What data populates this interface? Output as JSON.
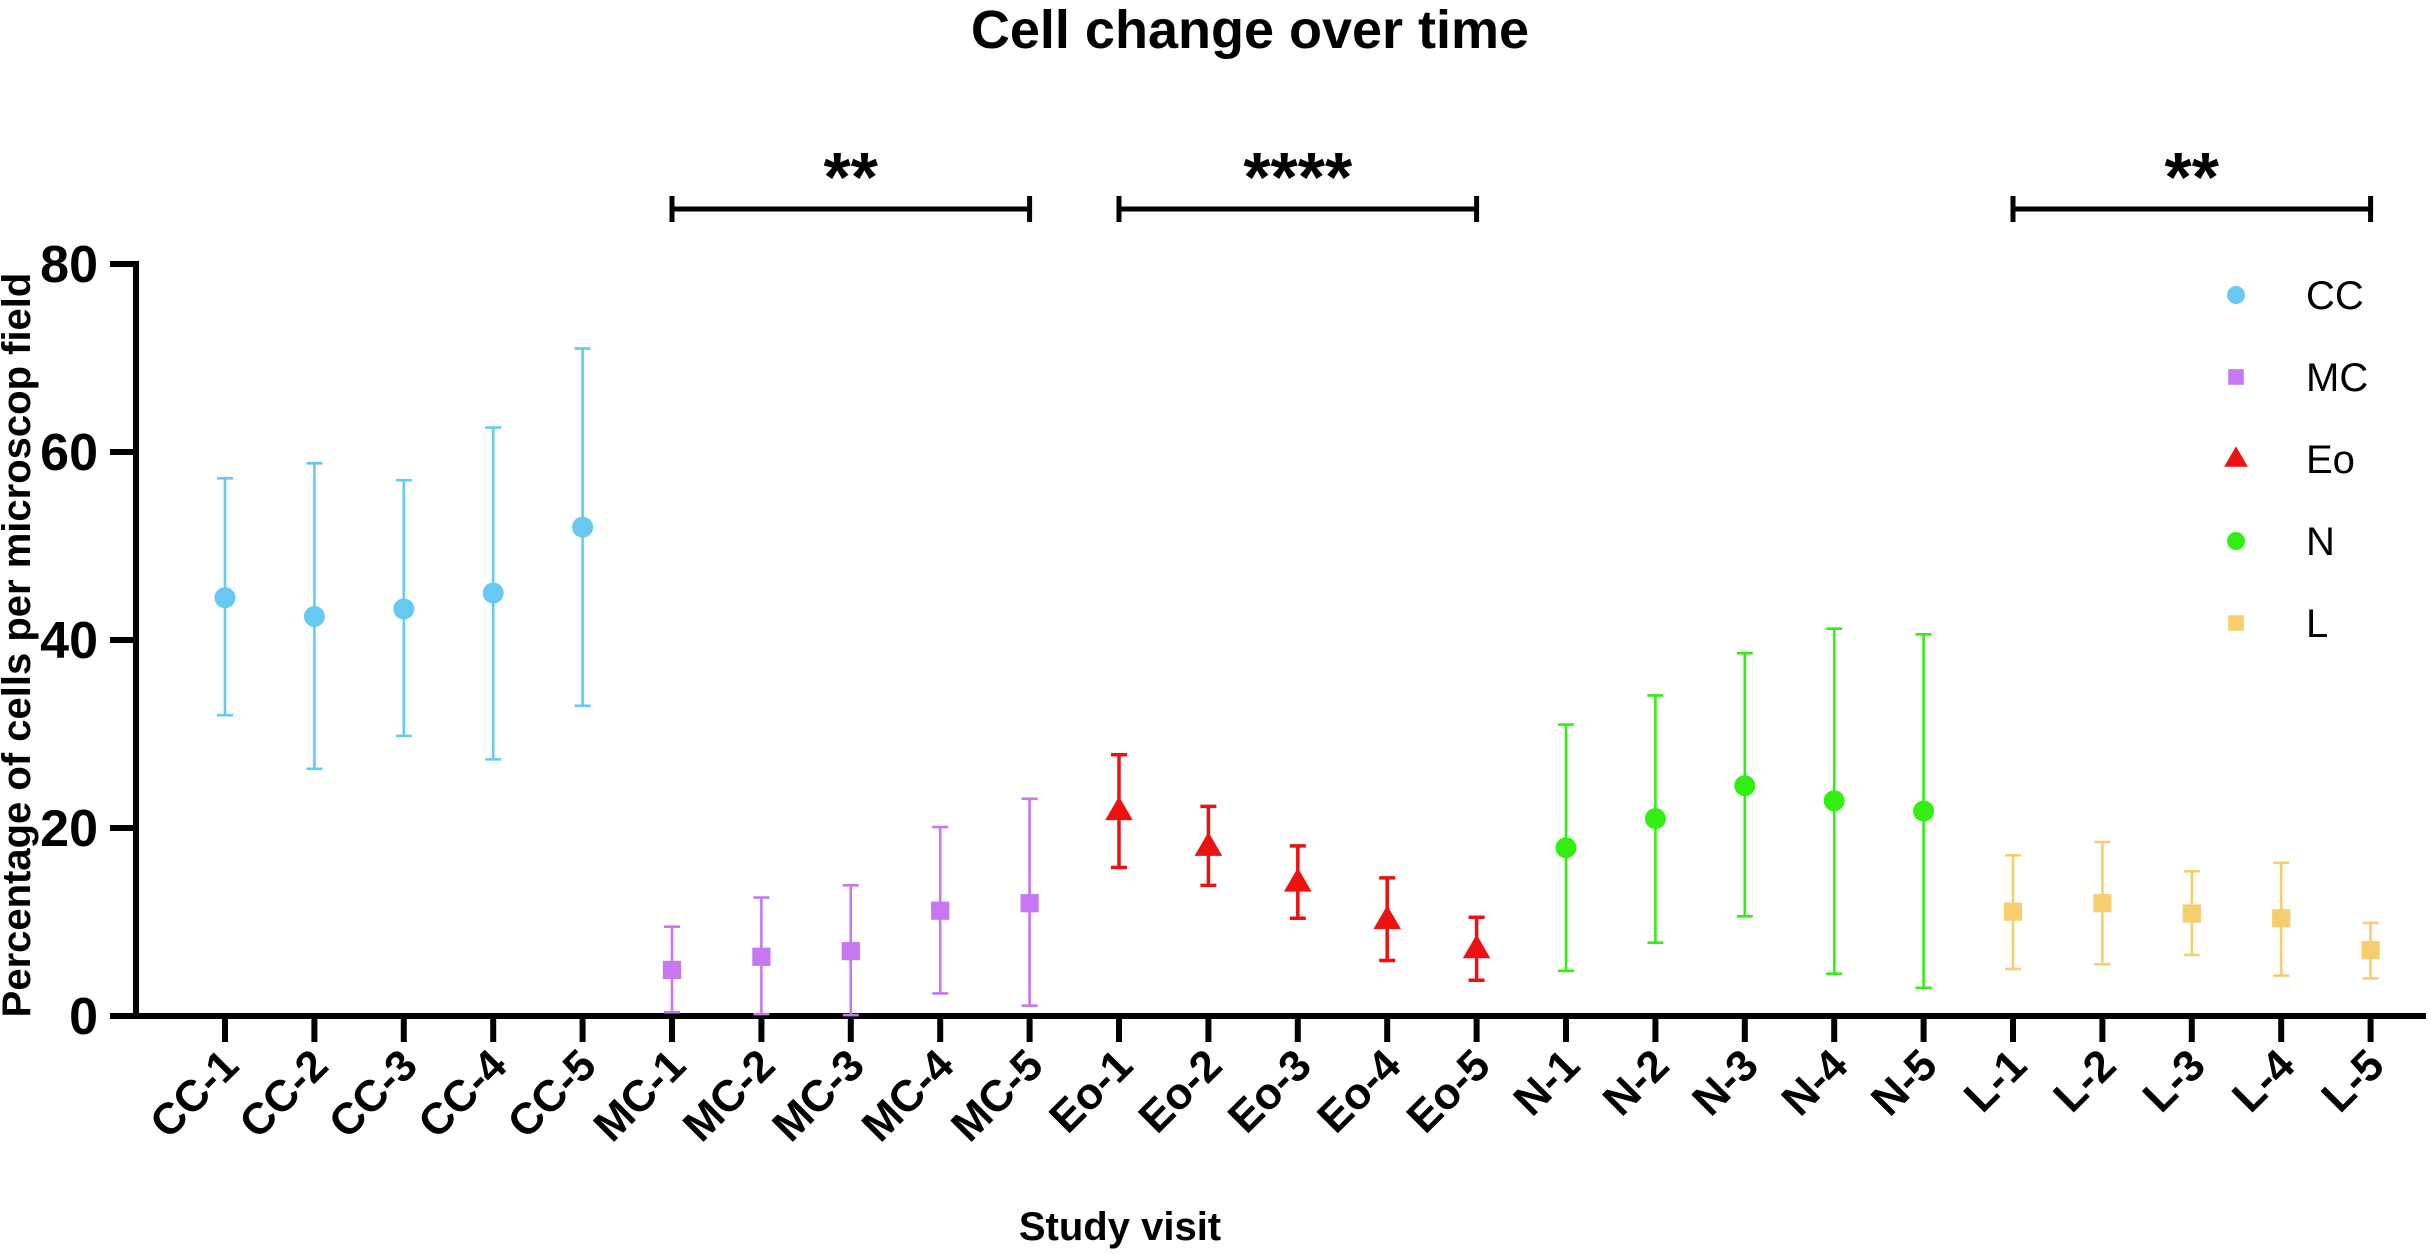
{
  "chart_data": {
    "type": "scatter",
    "title": "Cell change over time",
    "xlabel": "Study visit",
    "ylabel": "Percentage of cells per microscop field",
    "ylim": [
      0,
      80
    ],
    "yticks": [
      0,
      20,
      40,
      60,
      80
    ],
    "grid": false,
    "legend_position": "top-right",
    "categories": [
      "CC-1",
      "CC-2",
      "CC-3",
      "CC-4",
      "CC-5",
      "MC-1",
      "MC-2",
      "MC-3",
      "MC-4",
      "MC-5",
      "Eo-1",
      "Eo-2",
      "Eo-3",
      "Eo-4",
      "Eo-5",
      "N-1",
      "N-2",
      "N-3",
      "N-4",
      "N-5",
      "L-1",
      "L-2",
      "L-3",
      "L-4",
      "L-5"
    ],
    "series": [
      {
        "name": "CC",
        "color": "#66c9f2",
        "marker": "circle",
        "start": 0,
        "values": [
          44.5,
          42.5,
          43.3,
          45.0,
          52.0
        ],
        "lower": [
          32.0,
          26.3,
          29.8,
          27.3,
          33.0
        ],
        "upper": [
          57.2,
          58.8,
          57.0,
          62.6,
          71.0
        ]
      },
      {
        "name": "MC",
        "color": "#c677f1",
        "marker": "square",
        "start": 5,
        "values": [
          4.9,
          6.3,
          6.9,
          11.2,
          12.0
        ],
        "lower": [
          0.4,
          0.2,
          0.1,
          2.4,
          1.1
        ],
        "upper": [
          9.5,
          12.6,
          13.9,
          20.1,
          23.1
        ]
      },
      {
        "name": "Eo",
        "color": "#ee1111",
        "marker": "triangle",
        "start": 10,
        "values": [
          21.8,
          18.0,
          14.2,
          10.2,
          7.1
        ],
        "lower": [
          15.8,
          13.9,
          10.4,
          5.9,
          3.8
        ],
        "upper": [
          27.8,
          22.3,
          18.1,
          14.7,
          10.5
        ]
      },
      {
        "name": "N",
        "color": "#33ee11",
        "marker": "circle",
        "start": 15,
        "values": [
          17.9,
          21.0,
          24.5,
          22.9,
          21.8
        ],
        "lower": [
          4.8,
          7.8,
          10.6,
          4.5,
          3.0
        ],
        "upper": [
          31.0,
          34.1,
          38.6,
          41.2,
          40.6
        ]
      },
      {
        "name": "L",
        "color": "#f7ce6e",
        "marker": "square",
        "start": 20,
        "values": [
          11.1,
          12.0,
          10.9,
          10.4,
          7.0
        ],
        "lower": [
          5.0,
          5.5,
          6.5,
          4.3,
          4.0
        ],
        "upper": [
          17.1,
          18.5,
          15.4,
          16.3,
          9.9
        ]
      }
    ],
    "significance": [
      {
        "label": "**",
        "from": "MC-1",
        "to": "MC-5"
      },
      {
        "label": "****",
        "from": "Eo-1",
        "to": "Eo-5"
      },
      {
        "label": "**",
        "from": "L-1",
        "to": "L-5"
      }
    ]
  }
}
